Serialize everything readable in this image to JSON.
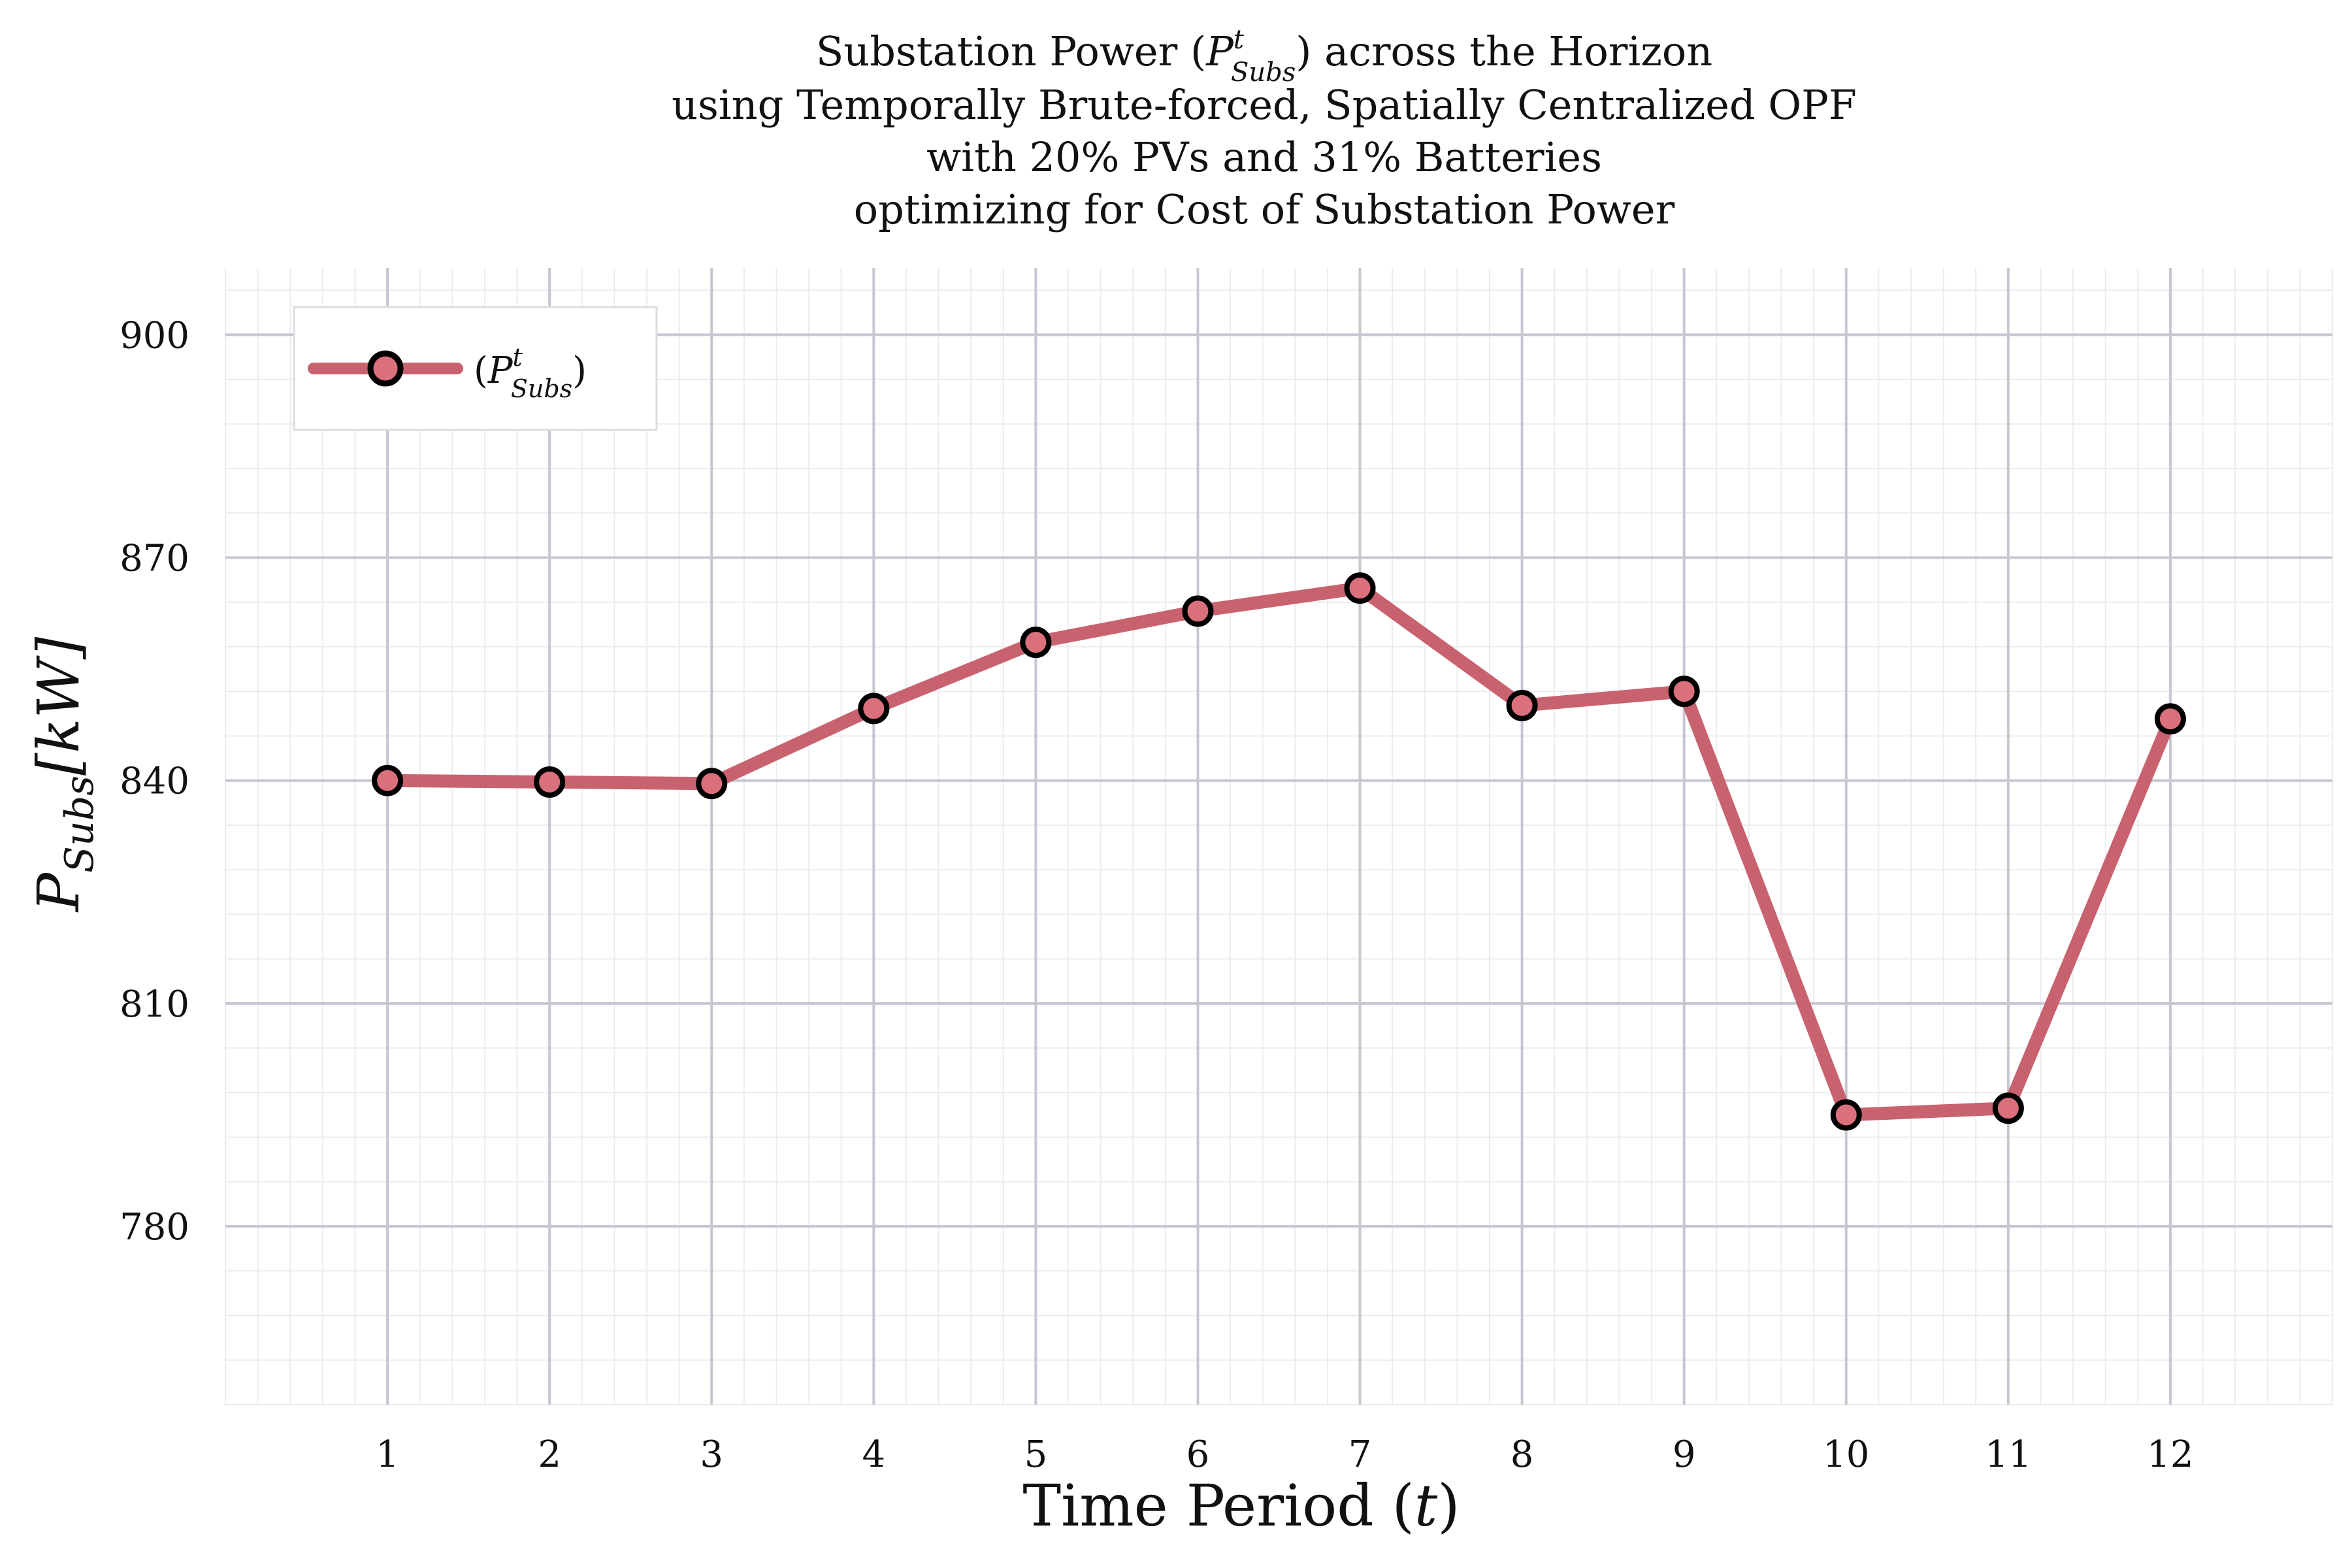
{
  "chart_data": {
    "type": "line",
    "title_lines": {
      "line1_pre": "Substation Power (",
      "line1_sym": "P",
      "line1_sup": "t",
      "line1_sub": "Subs",
      "line1_post": ") across the Horizon",
      "line2": "using Temporally Brute-forced, Spatially Centralized OPF",
      "line3": "with 20% PVs and 31% Batteries",
      "line4": "optimizing for Cost of Substation Power"
    },
    "xlabel": {
      "text": "Time Period (",
      "sym": "t",
      "post": ")"
    },
    "ylabel": {
      "sym": "P",
      "sub": "Subs",
      "post": "[kW]"
    },
    "x": [
      1,
      2,
      3,
      4,
      5,
      6,
      7,
      8,
      9,
      10,
      11,
      12
    ],
    "x_tick_labels": [
      "1",
      "2",
      "3",
      "4",
      "5",
      "6",
      "7",
      "8",
      "9",
      "10",
      "11",
      "12"
    ],
    "y_ticks": [
      780,
      810,
      840,
      870,
      900
    ],
    "y_tick_labels": [
      "780",
      "810",
      "840",
      "870",
      "900"
    ],
    "xlim": [
      0,
      13
    ],
    "ylim": [
      756,
      909
    ],
    "grid": true,
    "legend_position": "top-left",
    "series": [
      {
        "name_open": "(",
        "name_sym": "P",
        "name_sup": "t",
        "name_sub": "Subs",
        "name_close": ")",
        "values": [
          840.0,
          839.8,
          839.6,
          849.7,
          858.6,
          862.8,
          865.9,
          850.1,
          852.0,
          795.0,
          795.9,
          848.3
        ],
        "line_color": "#c9626f",
        "marker_fill": "#d9707b",
        "marker_edge": "#000000"
      }
    ],
    "grid_color_major": "#c7c7d2",
    "grid_color_minor": "#ececf0"
  }
}
